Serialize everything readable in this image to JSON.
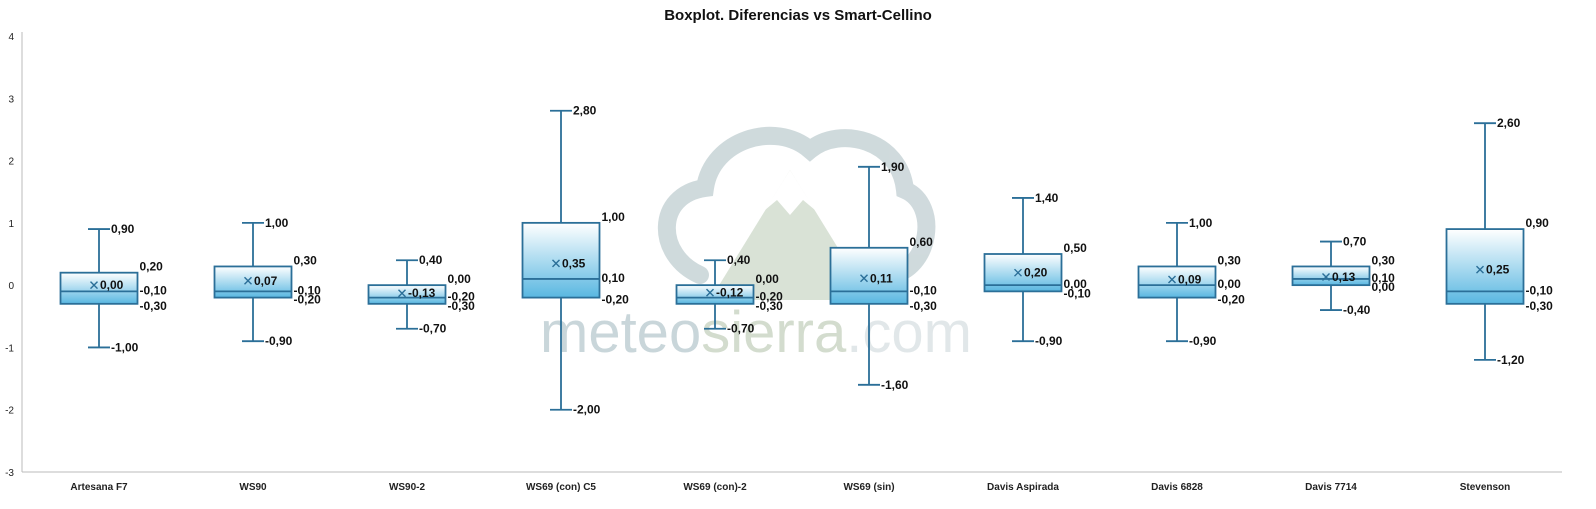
{
  "chart_data": {
    "type": "boxplot",
    "title": "Boxplot. Diferencias vs Smart-Cellino",
    "xlabel": "",
    "ylabel": "",
    "ylim": [
      -3,
      4
    ],
    "yticks": [
      4,
      3,
      2,
      1,
      0,
      -1,
      -2,
      -3
    ],
    "ytick_labels": [
      "4",
      "3",
      "2",
      "1",
      "0",
      "-1",
      "-2",
      "-3"
    ],
    "grid": false,
    "legend": "none",
    "colors": {
      "box_top": "#ffffff",
      "box_bottom": "#59b7e1",
      "stroke": "#2b6f98",
      "axis": "#bbbbbb"
    },
    "categories": [
      "Artesana F7",
      "WS90",
      "WS90-2",
      "WS69 (con) C5",
      "WS69 (con)-2",
      "WS69 (sin)",
      "Davis Aspirada",
      "Davis 6828",
      "Davis 7714",
      "Stevenson"
    ],
    "boxes": [
      {
        "category": "Artesana F7",
        "min": -1.0,
        "q1": -0.3,
        "median": -0.1,
        "q3": 0.2,
        "max": 0.9,
        "mean": 0.0,
        "labels": {
          "min": "-1,00",
          "q1": "-0,30",
          "median": "-0,10",
          "q3": "0,20",
          "max": "0,90",
          "mean": "0,00"
        }
      },
      {
        "category": "WS90",
        "min": -0.9,
        "q1": -0.2,
        "median": -0.1,
        "q3": 0.3,
        "max": 1.0,
        "mean": 0.07,
        "labels": {
          "min": "-0,90",
          "q1": "-0,20",
          "median": "-0,10",
          "q3": "0,30",
          "max": "1,00",
          "mean": "0,07"
        }
      },
      {
        "category": "WS90-2",
        "min": -0.7,
        "q1": -0.3,
        "median": -0.2,
        "q3": 0.0,
        "max": 0.4,
        "mean": -0.13,
        "labels": {
          "min": "-0,70",
          "q1": "-0,30",
          "median": "-0,20",
          "q3": "0,00",
          "max": "0,40",
          "mean": "-0,13"
        }
      },
      {
        "category": "WS69 (con) C5",
        "min": -2.0,
        "q1": -0.2,
        "median": 0.1,
        "q3": 1.0,
        "max": 2.8,
        "mean": 0.35,
        "labels": {
          "min": "-2,00",
          "q1": "-0,20",
          "median": "0,10",
          "q3": "1,00",
          "max": "2,80",
          "mean": "0,35"
        }
      },
      {
        "category": "WS69 (con)-2",
        "min": -0.7,
        "q1": -0.3,
        "median": -0.2,
        "q3": 0.0,
        "max": 0.4,
        "mean": -0.12,
        "labels": {
          "min": "-0,70",
          "q1": "-0,30",
          "median": "-0,20",
          "q3": "0,00",
          "max": "0,40",
          "mean": "-0,12"
        }
      },
      {
        "category": "WS69 (sin)",
        "min": -1.6,
        "q1": -0.3,
        "median": -0.1,
        "q3": 0.6,
        "max": 1.9,
        "mean": 0.11,
        "labels": {
          "min": "-1,60",
          "q1": "-0,30",
          "median": "-0,10",
          "q3": "0,60",
          "max": "1,90",
          "mean": "0,11"
        }
      },
      {
        "category": "Davis Aspirada",
        "min": -0.9,
        "q1": -0.1,
        "median": 0.0,
        "q3": 0.5,
        "max": 1.4,
        "mean": 0.2,
        "labels": {
          "min": "-0,90",
          "q1": "-0,10",
          "median": "0,00",
          "q3": "0,50",
          "max": "1,40",
          "mean": "0,20"
        }
      },
      {
        "category": "Davis 6828",
        "min": -0.9,
        "q1": -0.2,
        "median": 0.0,
        "q3": 0.3,
        "max": 1.0,
        "mean": 0.09,
        "labels": {
          "min": "-0,90",
          "q1": "-0,20",
          "median": "0,00",
          "q3": "0,30",
          "max": "1,00",
          "mean": "0,09"
        }
      },
      {
        "category": "Davis 7714",
        "min": -0.4,
        "q1": 0.0,
        "median": 0.1,
        "q3": 0.3,
        "max": 0.7,
        "mean": 0.13,
        "labels": {
          "min": "-0,40",
          "q1": "0,00",
          "median": "0,10",
          "q3": "0,30",
          "max": "0,70",
          "mean": "0,13"
        }
      },
      {
        "category": "Stevenson",
        "min": -1.2,
        "q1": -0.3,
        "median": -0.1,
        "q3": 0.9,
        "max": 2.6,
        "mean": 0.25,
        "labels": {
          "min": "-1,20",
          "q1": "-0,30",
          "median": "-0,10",
          "q3": "0,90",
          "max": "2,60",
          "mean": "0,25"
        }
      }
    ]
  },
  "watermark": {
    "text_a": "meteo",
    "text_b": "sierra",
    "text_c": ".com"
  }
}
